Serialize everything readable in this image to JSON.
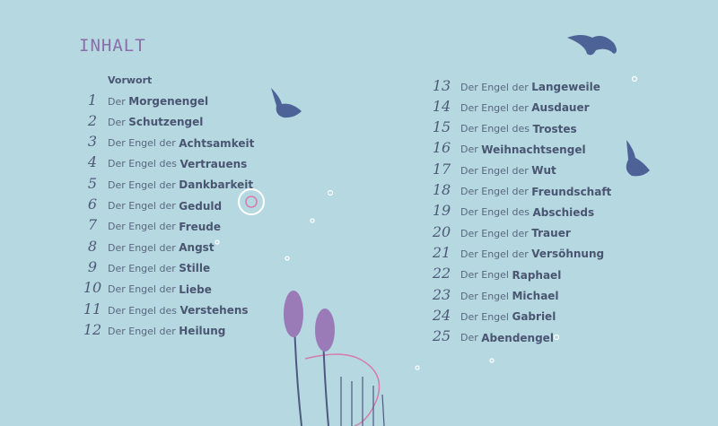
{
  "title": "INHALT",
  "preface": "Vorwort",
  "left_entries": [
    {
      "num": "1",
      "prefix": "Der ",
      "bold": "Morgenengel"
    },
    {
      "num": "2",
      "prefix": "Der ",
      "bold": "Schutzengel"
    },
    {
      "num": "3",
      "prefix": "Der Engel der ",
      "bold": "Achtsamkeit"
    },
    {
      "num": "4",
      "prefix": "Der Engel des ",
      "bold": "Vertrauens"
    },
    {
      "num": "5",
      "prefix": "Der Engel der ",
      "bold": "Dankbarkeit"
    },
    {
      "num": "6",
      "prefix": "Der Engel der ",
      "bold": "Geduld"
    },
    {
      "num": "7",
      "prefix": "Der Engel der ",
      "bold": "Freude"
    },
    {
      "num": "8",
      "prefix": "Der Engel der ",
      "bold": "Angst"
    },
    {
      "num": "9",
      "prefix": "Der Engel der ",
      "bold": "Stille"
    },
    {
      "num": "10",
      "prefix": "Der Engel der ",
      "bold": "Liebe"
    },
    {
      "num": "11",
      "prefix": "Der Engel des ",
      "bold": "Verstehens"
    },
    {
      "num": "12",
      "prefix": "Der Engel der ",
      "bold": "Heilung"
    }
  ],
  "right_entries": [
    {
      "num": "13",
      "prefix": "Der Engel der ",
      "bold": "Langeweile"
    },
    {
      "num": "14",
      "prefix": "Der Engel der ",
      "bold": "Ausdauer"
    },
    {
      "num": "15",
      "prefix": "Der Engel des ",
      "bold": "Trostes"
    },
    {
      "num": "16",
      "prefix": "Der ",
      "bold": "Weihnachtsengel"
    },
    {
      "num": "17",
      "prefix": "Der Engel der ",
      "bold": "Wut"
    },
    {
      "num": "18",
      "prefix": "Der Engel der ",
      "bold": "Freundschaft"
    },
    {
      "num": "19",
      "prefix": "Der Engel des ",
      "bold": "Abschieds"
    },
    {
      "num": "20",
      "prefix": "Der Engel der ",
      "bold": "Trauer"
    },
    {
      "num": "21",
      "prefix": "Der Engel der ",
      "bold": "Versöhnung"
    },
    {
      "num": "22",
      "prefix": "Der Engel ",
      "bold": "Raphael"
    },
    {
      "num": "23",
      "prefix": "Der Engel ",
      "bold": "Michael"
    },
    {
      "num": "24",
      "prefix": "Der Engel ",
      "bold": "Gabriel"
    },
    {
      "num": "25",
      "prefix": "Der ",
      "bold": "Abendengel"
    }
  ],
  "colors": {
    "background": "#b5d8e1",
    "title": "#8b6ea9",
    "text": "#4a5571",
    "bird": "#4d6397",
    "flower": "#9a7bb8"
  }
}
